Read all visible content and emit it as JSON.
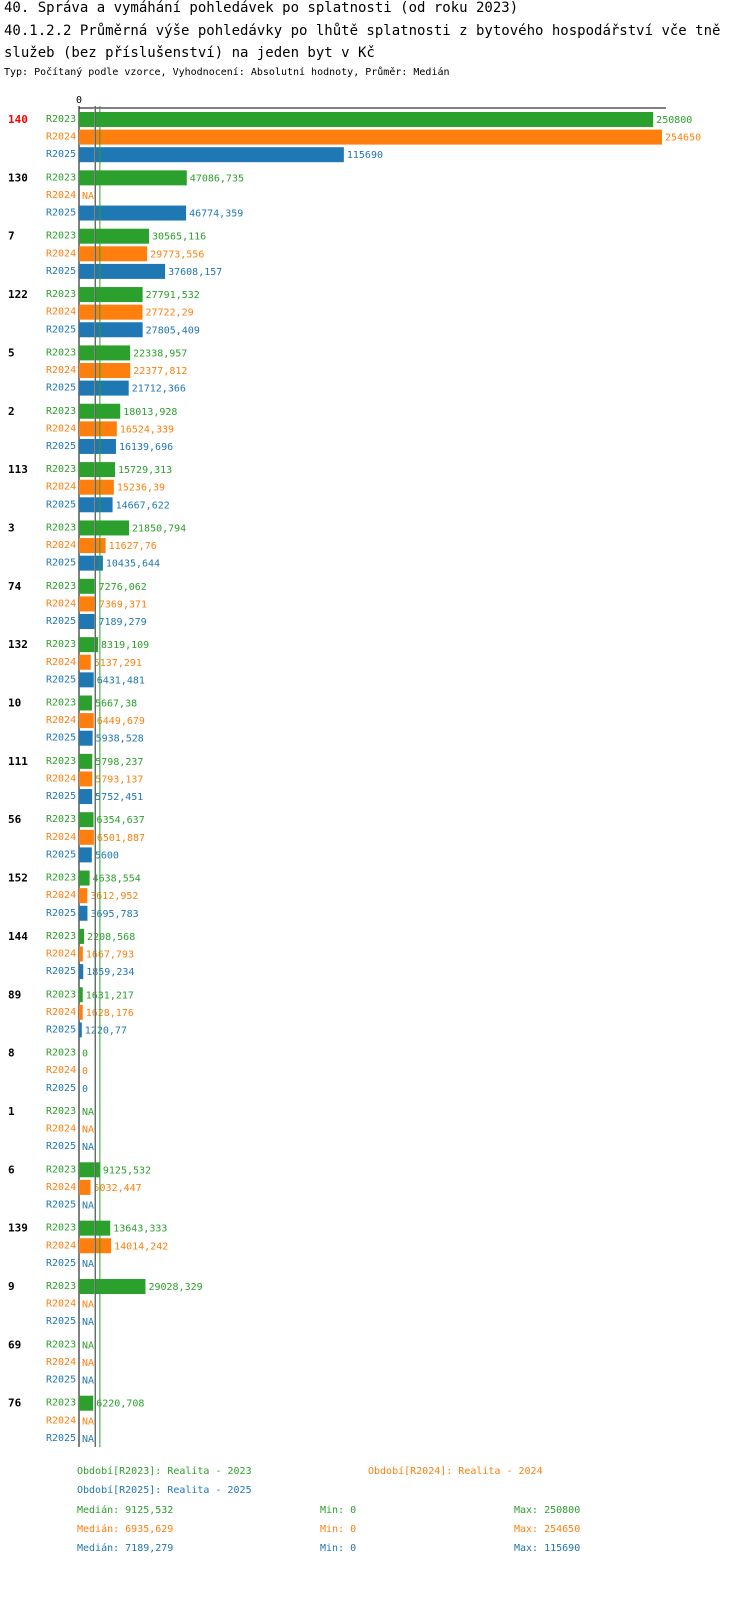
{
  "header": {
    "title": "40. Správa a vymáhání pohledávek po splatnosti (od roku 2023)",
    "subtitle_line": "40.1.2.2 Průměrná výše pohledávky po lhůtě splatnosti z bytového hospodářství vče tně služeb (bez příslušenství) na jeden byt v Kč",
    "type_line": "Typ: Počítaný podle vzorce, Vyhodnocení: Absolutní hodnoty, Průměr: Medián"
  },
  "colors": {
    "R2023": "#2ca02c",
    "R2024": "#ff7f0e",
    "R2025": "#1f77b4",
    "highlight": "#ff0000",
    "axis": "#000000"
  },
  "chart_data": {
    "type": "bar",
    "orientation": "horizontal",
    "zero_label": "0",
    "xlim": [
      0,
      254650
    ],
    "series_labels": [
      "R2023",
      "R2024",
      "R2025"
    ],
    "categories": [
      "140",
      "130",
      "7",
      "122",
      "5",
      "2",
      "113",
      "3",
      "74",
      "132",
      "10",
      "111",
      "56",
      "152",
      "144",
      "89",
      "8",
      "1",
      "6",
      "139",
      "9",
      "69",
      "76"
    ],
    "highlighted_category": "140",
    "series": [
      {
        "name": "R2023",
        "values": [
          250800,
          47086.735,
          30565.116,
          27791.532,
          22338.957,
          18013.928,
          15729.313,
          21850.794,
          7276.062,
          8319.109,
          5667.38,
          5798.237,
          6354.637,
          4638.554,
          2208.568,
          1631.217,
          0,
          null,
          9125.532,
          13643.333,
          29028.329,
          null,
          6220.708
        ],
        "labels": [
          "250800",
          "47086,735",
          "30565,116",
          "27791,532",
          "22338,957",
          "18013,928",
          "15729,313",
          "21850,794",
          "7276,062",
          "8319,109",
          "5667,38",
          "5798,237",
          "6354,637",
          "4638,554",
          "2208,568",
          "1631,217",
          "0",
          "NA",
          "9125,532",
          "13643,333",
          "29028,329",
          "NA",
          "6220,708"
        ]
      },
      {
        "name": "R2024",
        "values": [
          254650,
          null,
          29773.556,
          27722.29,
          22377.812,
          16524.339,
          15236.39,
          11627.76,
          7369.371,
          5137.291,
          6449.679,
          5793.137,
          6501.887,
          3612.952,
          1667.793,
          1628.176,
          0,
          null,
          5032.447,
          14014.242,
          null,
          null,
          null
        ],
        "labels": [
          "254650",
          "NA",
          "29773,556",
          "27722,29",
          "22377,812",
          "16524,339",
          "15236,39",
          "11627,76",
          "7369,371",
          "5137,291",
          "6449,679",
          "5793,137",
          "6501,887",
          "3612,952",
          "1667,793",
          "1628,176",
          "0",
          "NA",
          "5032,447",
          "14014,242",
          "NA",
          "NA",
          "NA"
        ]
      },
      {
        "name": "R2025",
        "values": [
          115690,
          46774.359,
          37608.157,
          27805.409,
          21712.366,
          16139.696,
          14667.622,
          10435.644,
          7189.279,
          6431.481,
          5938.528,
          5752.451,
          5600,
          3695.783,
          1859.234,
          1220.77,
          0,
          null,
          null,
          null,
          null,
          null,
          null
        ],
        "labels": [
          "115690",
          "46774,359",
          "37608,157",
          "27805,409",
          "21712,366",
          "16139,696",
          "14667,622",
          "10435,644",
          "7189,279",
          "6431,481",
          "5938,528",
          "5752,451",
          "5600",
          "3695,783",
          "1859,234",
          "1220,77",
          "0",
          "NA",
          "NA",
          "NA",
          "NA",
          "NA",
          "NA"
        ]
      }
    ],
    "medians": [
      9125.532,
      6935.629,
      7189.279
    ]
  },
  "legend": {
    "r2023": "Období[R2023]: Realita - 2023",
    "r2024": "Období[R2024]: Realita - 2024",
    "r2025": "Období[R2025]: Realita - 2025",
    "median_2023": "Medián: 9125,532",
    "min_2023": "Min: 0",
    "max_2023": "Max: 250800",
    "median_2024": "Medián: 6935,629",
    "min_2024": "Min: 0",
    "max_2024": "Max: 254650",
    "median_2025": "Medián: 7189,279",
    "min_2025": "Min: 0",
    "max_2025": "Max: 115690"
  }
}
